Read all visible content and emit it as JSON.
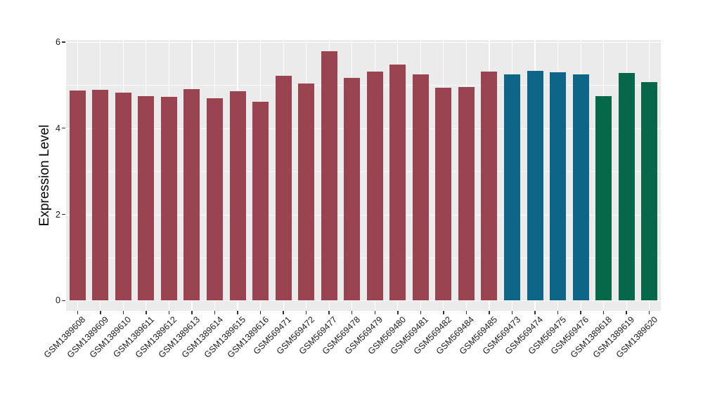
{
  "chart_data": {
    "type": "bar",
    "title": "",
    "xlabel": "",
    "ylabel": "Expression Level",
    "ylim": [
      -0.24,
      6.05
    ],
    "yticks_major": [
      0,
      2,
      4,
      6
    ],
    "yticks_minor": [
      1,
      3,
      5
    ],
    "grid": true,
    "legend": "none",
    "panel_bg": "#EBEBEB",
    "grid_color": "#FFFFFF",
    "tick_color": "#333333",
    "axis_text_color": "#1A1A1A",
    "palette": {
      "red": "#9B4451",
      "blue": "#0D6587",
      "green": "#046849"
    },
    "categories": [
      "GSM1389608",
      "GSM1389609",
      "GSM1389610",
      "GSM1389611",
      "GSM1389612",
      "GSM1389613",
      "GSM1389614",
      "GSM1389615",
      "GSM1389616",
      "GSM569471",
      "GSM569472",
      "GSM569477",
      "GSM569478",
      "GSM569479",
      "GSM569480",
      "GSM569481",
      "GSM569482",
      "GSM569484",
      "GSM569485",
      "GSM569473",
      "GSM569474",
      "GSM569475",
      "GSM569476",
      "GSM1389618",
      "GSM1389619",
      "GSM1389620"
    ],
    "values": [
      4.87,
      4.89,
      4.82,
      4.75,
      4.73,
      4.91,
      4.7,
      4.86,
      4.62,
      5.22,
      5.03,
      5.78,
      5.16,
      5.31,
      5.47,
      5.25,
      4.94,
      4.96,
      5.31,
      5.25,
      5.33,
      5.29,
      5.25,
      4.74,
      5.28,
      5.07
    ],
    "bar_groups": [
      "red",
      "red",
      "red",
      "red",
      "red",
      "red",
      "red",
      "red",
      "red",
      "red",
      "red",
      "red",
      "red",
      "red",
      "red",
      "red",
      "red",
      "red",
      "red",
      "blue",
      "blue",
      "blue",
      "blue",
      "green",
      "green",
      "green"
    ]
  }
}
